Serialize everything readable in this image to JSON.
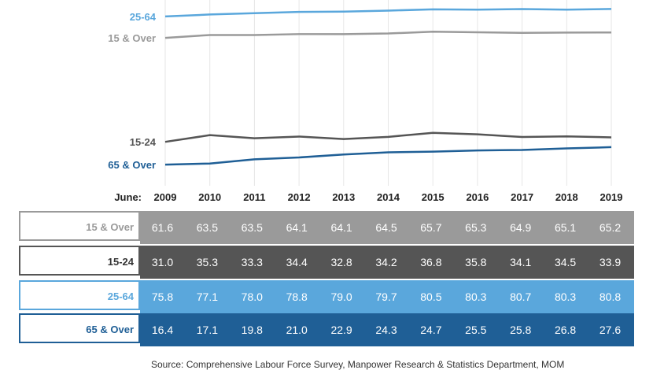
{
  "chart_data": {
    "type": "line",
    "x_prefix": "June:",
    "x": [
      "2009",
      "2010",
      "2011",
      "2012",
      "2013",
      "2014",
      "2015",
      "2016",
      "2017",
      "2018",
      "2019"
    ],
    "series": [
      {
        "name": "25-64",
        "color": "#5aa7dc",
        "values": [
          75.8,
          77.1,
          78.0,
          78.8,
          79.0,
          79.7,
          80.5,
          80.3,
          80.7,
          80.3,
          80.8
        ]
      },
      {
        "name": "15 & Over",
        "color": "#9a9a9a",
        "values": [
          61.6,
          63.5,
          63.5,
          64.1,
          64.1,
          64.5,
          65.7,
          65.3,
          64.9,
          65.1,
          65.2
        ]
      },
      {
        "name": "15-24",
        "color": "#555555",
        "values": [
          31.0,
          35.3,
          33.3,
          34.4,
          32.8,
          34.2,
          36.8,
          35.8,
          34.1,
          34.5,
          33.9
        ]
      },
      {
        "name": "65 & Over",
        "color": "#1f5f96",
        "values": [
          16.4,
          17.1,
          19.8,
          21.0,
          22.9,
          24.3,
          24.7,
          25.5,
          25.8,
          26.8,
          27.6
        ]
      }
    ]
  },
  "table": {
    "rows": [
      {
        "label": "15 & Over",
        "label_color": "#9a9a9a",
        "fill": "#9a9a9a",
        "border": "#9a9a9a",
        "values": [
          "61.6",
          "63.5",
          "63.5",
          "64.1",
          "64.1",
          "64.5",
          "65.7",
          "65.3",
          "64.9",
          "65.1",
          "65.2"
        ]
      },
      {
        "label": "15-24",
        "label_color": "#333333",
        "fill": "#555555",
        "border": "#555555",
        "values": [
          "31.0",
          "35.3",
          "33.3",
          "34.4",
          "32.8",
          "34.2",
          "36.8",
          "35.8",
          "34.1",
          "34.5",
          "33.9"
        ]
      },
      {
        "label": "25-64",
        "label_color": "#5aa7dc",
        "fill": "#5aa7dc",
        "border": "#5aa7dc",
        "values": [
          "75.8",
          "77.1",
          "78.0",
          "78.8",
          "79.0",
          "79.7",
          "80.5",
          "80.3",
          "80.7",
          "80.3",
          "80.8"
        ]
      },
      {
        "label": "65 & Over",
        "label_color": "#1f5f96",
        "fill": "#1f5f96",
        "border": "#1f5f96",
        "values": [
          "16.4",
          "17.1",
          "19.8",
          "21.0",
          "22.9",
          "24.3",
          "24.7",
          "25.5",
          "25.8",
          "26.8",
          "27.6"
        ]
      }
    ]
  },
  "source": "Source: Comprehensive Labour Force Survey, Manpower Research & Statistics Department, MOM"
}
